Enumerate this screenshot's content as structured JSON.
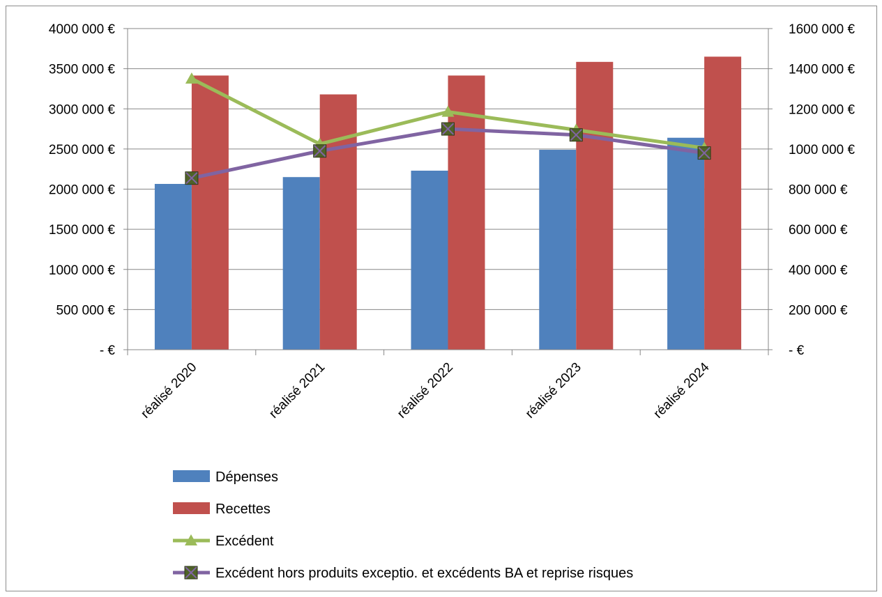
{
  "chart_data": {
    "type": "bar",
    "title": "",
    "categories": [
      "réalisé 2020",
      "réalisé 2021",
      "réalisé 2022",
      "réalisé 2023",
      "réalisé 2024"
    ],
    "left_axis": {
      "ticks": [
        0,
        500000,
        1000000,
        1500000,
        2000000,
        2500000,
        3000000,
        3500000,
        4000000
      ],
      "tick_labels": [
        "-   €",
        "500 000 €",
        "1000 000 €",
        "1500 000 €",
        "2000 000 €",
        "2500 000 €",
        "3000 000 €",
        "3500 000 €",
        "4000 000 €"
      ],
      "ylim": [
        0,
        4000000
      ]
    },
    "right_axis": {
      "ticks": [
        0,
        200000,
        400000,
        600000,
        800000,
        1000000,
        1200000,
        1400000,
        1600000
      ],
      "tick_labels": [
        "-   €",
        "200 000 €",
        "400 000 €",
        "600 000 €",
        "800 000 €",
        "1000 000 €",
        "1200 000 €",
        "1400 000 €",
        "1600 000 €"
      ],
      "ylim": [
        0,
        1600000
      ]
    },
    "grid": true,
    "legend_position": "bottom",
    "series": [
      {
        "name": "Dépenses",
        "type": "bar",
        "axis": "left",
        "color": "#4F81BD",
        "values": [
          2065000,
          2150000,
          2230000,
          2490000,
          2640000
        ]
      },
      {
        "name": "Recettes",
        "type": "bar",
        "axis": "left",
        "color": "#C0504D",
        "values": [
          3415000,
          3180000,
          3415000,
          3585000,
          3650000
        ]
      },
      {
        "name": "Excédent",
        "type": "line",
        "axis": "right",
        "color": "#9BBB59",
        "marker": "triangle",
        "values": [
          1350000,
          1025000,
          1185000,
          1095000,
          1005000
        ]
      },
      {
        "name": "Excédent hors produits exceptio. et excédents BA et reprise risques",
        "type": "line",
        "axis": "right",
        "color": "#8064A2",
        "marker": "x-square",
        "values": [
          855000,
          990000,
          1100000,
          1070000,
          980000
        ]
      }
    ]
  }
}
